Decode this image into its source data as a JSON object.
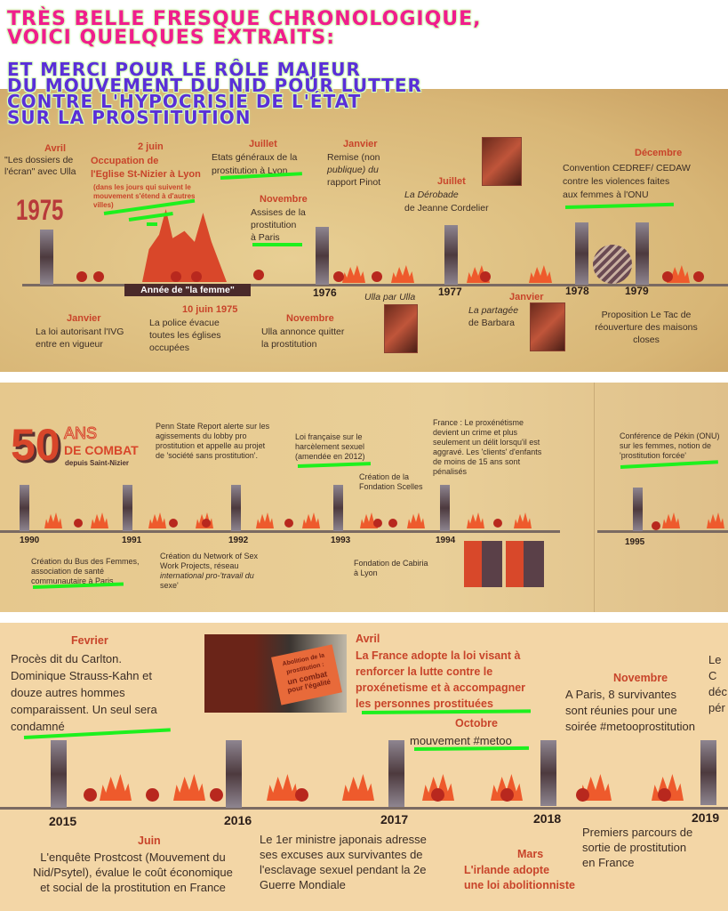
{
  "header": {
    "lines_pink": [
      "TRÈS BELLE FRESQUE CHRONOLOGIQUE,",
      "VOICI QUELQUES EXTRAITS:"
    ],
    "lines_purple": [
      "ET MERCI POUR LE RÔLE MAJEUR",
      "DU MOUVEMENT DU NID POUR LUTTER",
      "CONTRE L'HYPOCRISIE DE L'ÉTAT",
      "SUR LA PROSTITUTION"
    ],
    "colors": {
      "pink": "#f01e8c",
      "purple": "#5a2fd8",
      "highlight": "#1ef01e"
    }
  },
  "panel1": {
    "big_year": "1975",
    "years": [
      "1976",
      "1977",
      "1978",
      "1979"
    ],
    "banner": "Année de \"la femme\"",
    "e1": {
      "month": "Avril",
      "text": [
        "\"Les dossiers de",
        "l'écran\" avec Ulla"
      ]
    },
    "e2": {
      "month": "2 juin",
      "text": [
        "Occupation de",
        "l'Eglise St-Nizier à Lyon"
      ],
      "note": [
        "(dans les jours qui suivent le",
        "mouvement s'étend à d'autres",
        "villes)"
      ]
    },
    "e3": {
      "month": "Juillet",
      "text": [
        "Etats généraux de la",
        "prostitution à Lyon"
      ]
    },
    "e4": {
      "month": "Novembre",
      "text": [
        "Assises de la",
        "prostitution",
        "à Paris"
      ]
    },
    "e5": {
      "month": "Janvier",
      "text": [
        "Remise (non",
        "publique) du",
        "rapport Pinot"
      ]
    },
    "e6": {
      "month": "Juillet",
      "text": [
        "La Dérobade",
        "de Jeanne Cordelier"
      ]
    },
    "e7": {
      "month": "Décembre",
      "text": [
        "Convention CEDREF/ CEDAW",
        "contre les violences faites",
        "aux femmes à l'ONU"
      ]
    },
    "b1": {
      "month": "Janvier",
      "text": [
        "La loi autorisant l'IVG",
        "entre en vigueur"
      ]
    },
    "b2": {
      "month": "10 juin 1975",
      "text": [
        "La police évacue",
        "toutes les églises",
        "occupées"
      ]
    },
    "b3": {
      "month": "Novembre",
      "text": [
        "Ulla annonce quitter",
        "la prostitution"
      ]
    },
    "b4": {
      "text": "Ulla par Ulla"
    },
    "b5": {
      "month": "Janvier",
      "text": [
        "La partagée",
        "de Barbara"
      ]
    },
    "b6": {
      "text": [
        "Proposition Le Tac de",
        "réouverture des maisons",
        "closes"
      ]
    }
  },
  "panel2": {
    "logo": {
      "number": "50",
      "line1": "ANS",
      "line2": "DE COMBAT",
      "line3": "depuis Saint-Nizier"
    },
    "years": [
      "1990",
      "1991",
      "1992",
      "1993",
      "1994",
      "1995"
    ],
    "t1": [
      "Penn State Report alerte sur les",
      "agissements du lobby pro",
      "prostitution et appelle au projet",
      "de 'société sans prostitution'."
    ],
    "t2": [
      "Loi française sur le",
      "harcèlement sexuel",
      "(amendée en 2012)"
    ],
    "t3": [
      "France : Le proxénétisme",
      "devient un crime et plus",
      "seulement un délit lorsqu'il est",
      "aggravé. Les 'clients' d'enfants",
      "de moins de 15 ans sont",
      "pénalisés"
    ],
    "t4": [
      "Création de la",
      "Fondation Scelles"
    ],
    "t5": [
      "Conférence de Pékin (ONU)",
      "sur les femmes, notion de",
      "'prostitution forcée'"
    ],
    "b1": [
      "Création du Bus des Femmes,",
      "association de santé",
      "communautaire à Paris"
    ],
    "b2": [
      "Création du Network of Sex",
      "Work Projects, réseau",
      "international pro-'travail du",
      "sexe'"
    ],
    "b3": [
      "Fondation de Cabiria",
      "à Lyon"
    ]
  },
  "panel3": {
    "years": [
      "2015",
      "2016",
      "2017",
      "2018",
      "2019"
    ],
    "sign": [
      "Abolition de la",
      "prostitution :",
      "un combat",
      "pour l'égalité"
    ],
    "e1": {
      "month": "Fevrier",
      "text": [
        "Procès dit du Carlton.",
        "Dominique Strauss-Kahn et",
        "douze autres hommes",
        "comparaissent. Un seul sera",
        "condamné"
      ]
    },
    "e2": {
      "month": "Avril",
      "text": [
        "La France adopte la loi visant à",
        "renforcer la lutte contre le",
        "proxénetisme et à accompagner",
        "les personnes prostituées"
      ]
    },
    "e3": {
      "month": "Octobre",
      "text": "mouvement #metoo"
    },
    "e4": {
      "month": "Novembre",
      "text": [
        "A Paris, 8 survivantes",
        "sont réunies pour une",
        "soirée #metooprostitution"
      ]
    },
    "e5": {
      "text": [
        "Le C",
        "déc",
        "pér"
      ]
    },
    "b1": {
      "month": "Juin",
      "text": [
        "L'enquête Prostcost (Mouvement du",
        "Nid/Psytel), évalue le coût économique",
        "et social de la prostitution en France"
      ]
    },
    "b2": {
      "text": [
        "Le 1er ministre japonais adresse",
        "ses excuses aux survivantes de",
        "l'esclavage sexuel pendant la 2e",
        "Guerre Mondiale"
      ]
    },
    "b3": {
      "month": "Mars",
      "text": [
        "L'irlande adopte",
        "une loi abolitionniste"
      ]
    },
    "b4": {
      "text": [
        "Premiers parcours de",
        "sortie de prostitution",
        "en France"
      ]
    }
  }
}
